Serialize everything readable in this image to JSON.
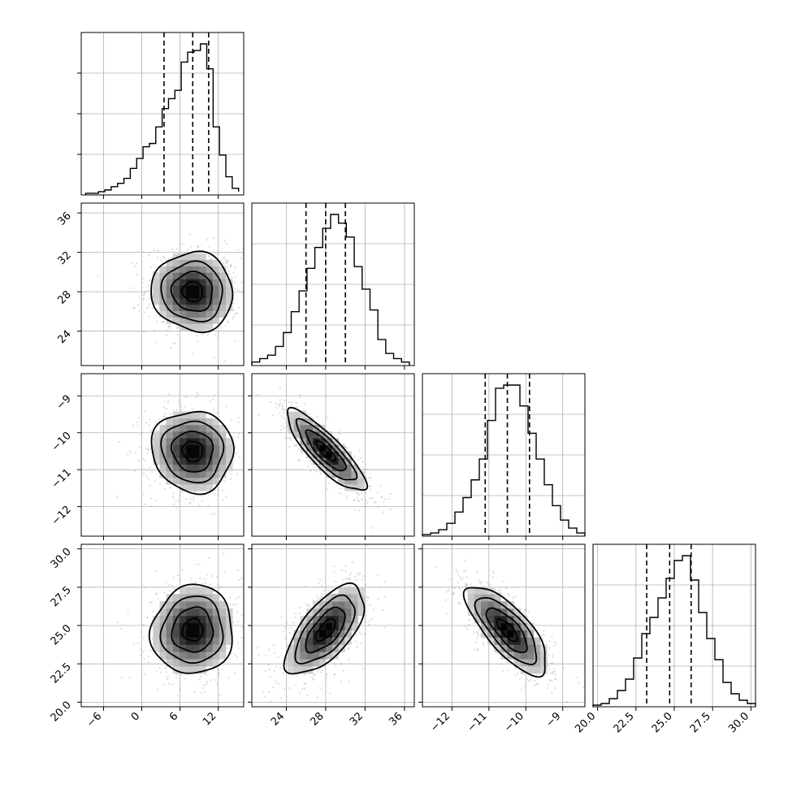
{
  "chart_data": {
    "type": "corner",
    "grid": true,
    "colors": {
      "line": "#000000",
      "scatter": "#808080",
      "grid": "#b0b0b0",
      "background": "#ffffff"
    },
    "params": [
      {
        "range": [
          -9.5,
          16
        ],
        "ticks": [
          -6,
          0,
          6,
          12
        ],
        "tick_labels": [
          "−6",
          "0",
          "6",
          "12"
        ],
        "quantiles": [
          3.5,
          8.0,
          10.5
        ],
        "mean": 8.0,
        "sd": 3.2
      },
      {
        "range": [
          20.5,
          37
        ],
        "ticks": [
          24,
          28,
          32,
          36
        ],
        "tick_labels": [
          "24",
          "28",
          "32",
          "36"
        ],
        "quantiles": [
          26.0,
          28.0,
          30.0
        ],
        "mean": 28.0,
        "sd": 2.0
      },
      {
        "range": [
          -12.8,
          -8.4
        ],
        "ticks": [
          -12,
          -11,
          -10,
          -9
        ],
        "tick_labels": [
          "−12",
          "−11",
          "−10",
          "−9"
        ],
        "quantiles": [
          -11.1,
          -10.5,
          -9.9
        ],
        "mean": -10.5,
        "sd": 0.55
      },
      {
        "range": [
          19.7,
          30.3
        ],
        "ticks": [
          20.0,
          22.5,
          25.0,
          27.5,
          30.0
        ],
        "tick_labels": [
          "20.0",
          "22.5",
          "25.0",
          "27.5",
          "30.0"
        ],
        "quantiles": [
          23.2,
          24.7,
          26.1
        ],
        "mean": 24.7,
        "sd": 1.45
      }
    ],
    "correlations": {
      "1-0": -0.05,
      "2-0": -0.05,
      "2-1": -0.85,
      "3-0": 0.05,
      "3-1": 0.65,
      "3-2": -0.75
    },
    "histograms": [
      {
        "bins": [
          -8.8,
          -7.8,
          -6.8,
          -5.8,
          -4.8,
          -3.8,
          -2.8,
          -1.8,
          -0.8,
          0.2,
          1.2,
          2.2,
          3.2,
          4.2,
          5.2,
          6.2,
          7.2,
          8.2,
          9.2,
          10.2,
          11.2,
          12.2,
          13.2,
          14.2,
          15.2
        ],
        "counts": [
          0.01,
          0.01,
          0.02,
          0.03,
          0.05,
          0.07,
          0.1,
          0.16,
          0.22,
          0.29,
          0.31,
          0.41,
          0.52,
          0.58,
          0.63,
          0.8,
          0.86,
          0.87,
          0.91,
          0.76,
          0.41,
          0.24,
          0.11,
          0.04,
          0.02
        ]
      },
      {
        "bins": [
          20.5,
          21.3,
          22.1,
          22.9,
          23.7,
          24.5,
          25.3,
          26.1,
          26.9,
          27.7,
          28.5,
          29.3,
          30.1,
          30.9,
          31.7,
          32.5,
          33.3,
          34.1,
          34.9,
          35.7,
          36.5
        ],
        "counts": [
          0.02,
          0.04,
          0.06,
          0.11,
          0.19,
          0.31,
          0.43,
          0.56,
          0.68,
          0.79,
          0.87,
          0.82,
          0.74,
          0.57,
          0.44,
          0.32,
          0.15,
          0.07,
          0.04,
          0.02
        ]
      },
      {
        "bins": [
          -12.8,
          -12.58,
          -12.36,
          -12.14,
          -11.92,
          -11.7,
          -11.48,
          -11.26,
          -11.04,
          -10.82,
          -10.6,
          -10.38,
          -10.16,
          -9.94,
          -9.72,
          -9.5,
          -9.28,
          -9.06,
          -8.84,
          -8.62,
          -8.4
        ],
        "counts": [
          0.01,
          0.02,
          0.04,
          0.08,
          0.15,
          0.24,
          0.35,
          0.48,
          0.72,
          0.92,
          0.94,
          0.94,
          0.81,
          0.64,
          0.48,
          0.32,
          0.19,
          0.1,
          0.05,
          0.02
        ]
      },
      {
        "bins": [
          19.7,
          20.23,
          20.76,
          21.29,
          21.82,
          22.35,
          22.88,
          23.41,
          23.94,
          24.47,
          25.0,
          25.53,
          26.06,
          26.59,
          27.12,
          27.65,
          28.18,
          28.71,
          29.24,
          29.77,
          30.3
        ],
        "counts": [
          0.01,
          0.02,
          0.05,
          0.1,
          0.17,
          0.3,
          0.45,
          0.55,
          0.67,
          0.79,
          0.9,
          0.93,
          0.78,
          0.58,
          0.42,
          0.29,
          0.15,
          0.08,
          0.04,
          0.02
        ]
      }
    ]
  }
}
